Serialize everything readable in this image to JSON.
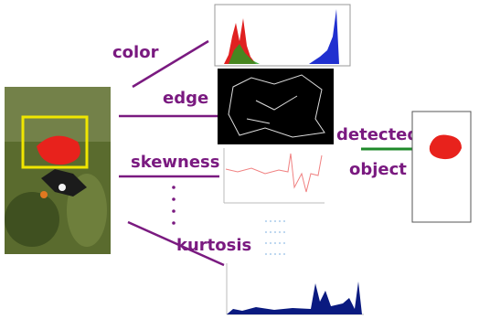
{
  "labels": {
    "color": "color",
    "edge": "edge",
    "skewness": "skewness",
    "kurtosis": "kurtosis"
  },
  "output": {
    "line1": "detected",
    "line2": "object"
  }
}
